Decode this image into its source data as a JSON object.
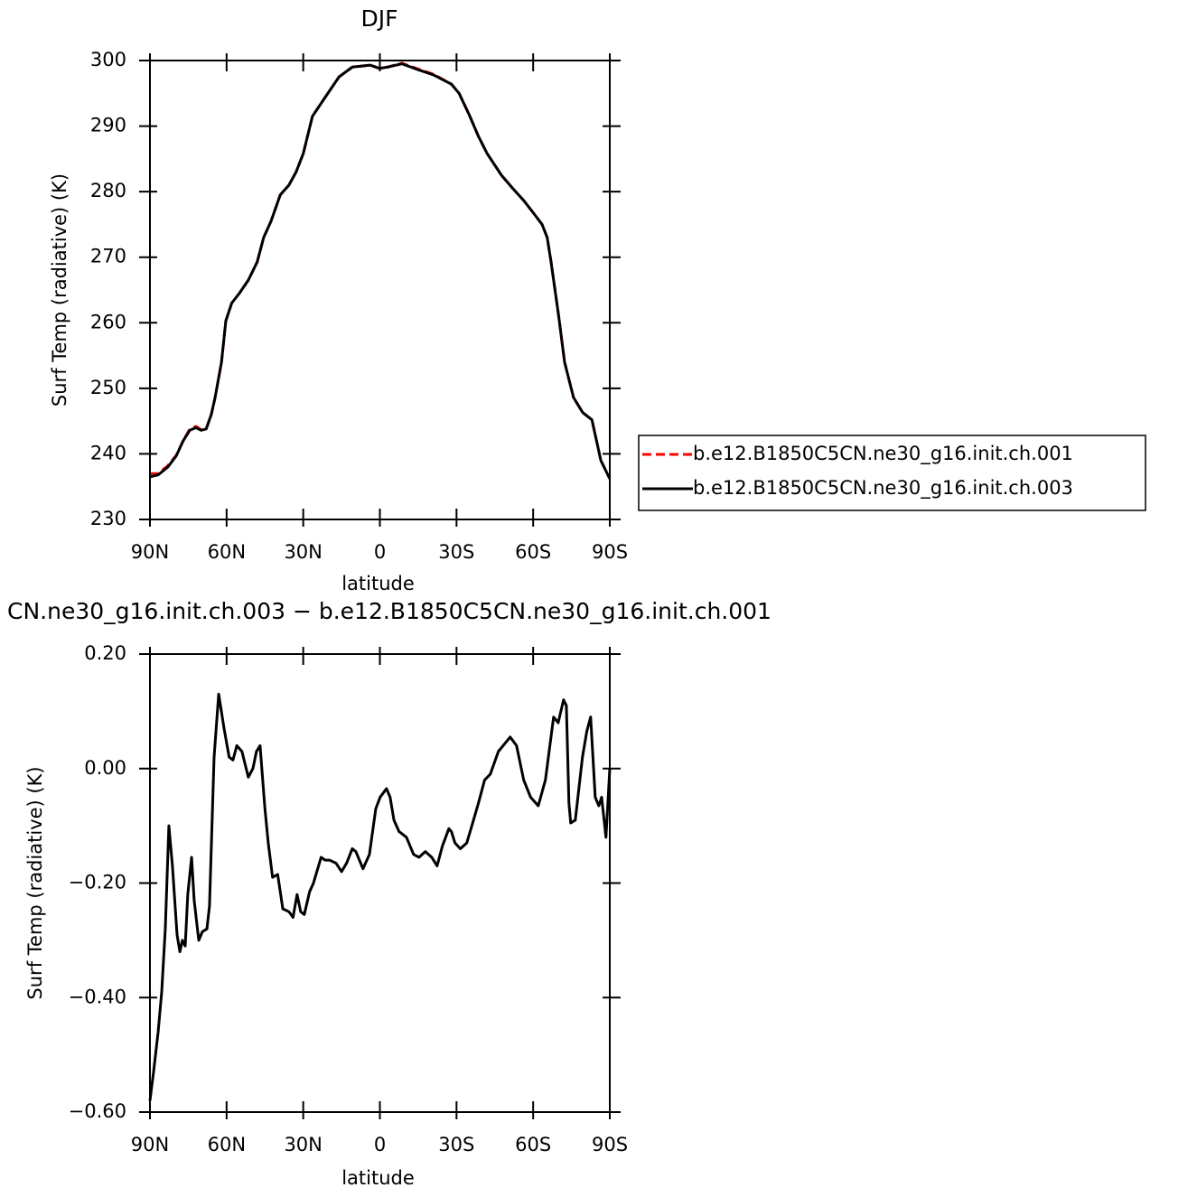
{
  "chart_data": [
    {
      "type": "line",
      "title": "DJF",
      "xlabel": "latitude",
      "ylabel": "Surf Temp (radiative) (K)",
      "x": [
        90,
        86.8,
        83,
        79.7,
        77,
        74.4,
        72,
        70,
        68,
        66,
        64.5,
        62,
        60.3,
        58,
        55,
        51.5,
        48,
        45.5,
        42.6,
        39,
        35.6,
        32.8,
        30,
        26.4,
        21.4,
        16,
        10.8,
        3.8,
        0.2,
        -3,
        -8.6,
        -15,
        -21,
        -28,
        -31,
        -35,
        -38.5,
        -42,
        -47.6,
        -52,
        -56.4,
        -60,
        -63.5,
        -65.5,
        -67,
        -70,
        -72.3,
        -75.8,
        -79.4,
        -83,
        -86.5,
        -90
      ],
      "series": [
        {
          "name": "b.e12.B1850C5CN.ne30_g16.init.ch.001",
          "color": "#ff0000",
          "linestyle": "dashed",
          "values": [
            237,
            237,
            238.2,
            239.8,
            242,
            243.8,
            244.2,
            243.7,
            243.8,
            246,
            248.6,
            254,
            260.3,
            263,
            264.5,
            266.5,
            269.3,
            273,
            275.5,
            279.5,
            281,
            283,
            285.8,
            291.5,
            294.4,
            297.5,
            299,
            299.3,
            298.8,
            299,
            299.6,
            298.7,
            297.9,
            296.4,
            295,
            291.7,
            288.5,
            285.8,
            282.5,
            280.5,
            278.6,
            276.8,
            275,
            273,
            269.3,
            261,
            254,
            248.6,
            246.3,
            245.2,
            239,
            236.2
          ]
        },
        {
          "name": "b.e12.B1850C5CN.ne30_g16.init.ch.003",
          "color": "#000000",
          "linestyle": "solid",
          "values": [
            236.5,
            236.8,
            238,
            239.7,
            242,
            243.6,
            244,
            243.6,
            243.8,
            246,
            248.6,
            254,
            260.3,
            263,
            264.5,
            266.5,
            269.3,
            273,
            275.5,
            279.5,
            281,
            283,
            285.8,
            291.5,
            294.4,
            297.5,
            299,
            299.3,
            298.8,
            299,
            299.5,
            298.6,
            297.8,
            296.4,
            295,
            291.7,
            288.5,
            285.8,
            282.5,
            280.5,
            278.6,
            276.8,
            275,
            273,
            269.3,
            261,
            254,
            248.6,
            246.3,
            245.2,
            239,
            236.2
          ]
        }
      ],
      "xlim": [
        90,
        -90
      ],
      "ylim": [
        230,
        300
      ],
      "xticks": [
        {
          "value": 90,
          "label": "90N"
        },
        {
          "value": 60,
          "label": "60N"
        },
        {
          "value": 30,
          "label": "30N"
        },
        0,
        {
          "value": -30,
          "label": "30S"
        },
        {
          "value": -60,
          "label": "60S"
        },
        {
          "value": -90,
          "label": "90S"
        }
      ],
      "yticks": [
        230,
        240,
        250,
        260,
        270,
        280,
        290,
        300
      ],
      "legend": "right"
    },
    {
      "type": "line",
      "title": "CN.ne30_g16.init.ch.003 − b.e12.B1850C5CN.ne30_g16.init.ch.001",
      "xlabel": "latitude",
      "ylabel": "Surf Temp (radiative) (K)",
      "x": [
        90,
        88.6,
        86.8,
        85.4,
        84,
        82.6,
        81.2,
        79.4,
        78.3,
        77.3,
        76.2,
        75.2,
        73.7,
        72.7,
        70.9,
        69.5,
        67.7,
        66.7,
        64.9,
        63.1,
        61,
        59,
        57.5,
        56,
        54,
        51.5,
        49.7,
        48.3,
        46.9,
        45,
        43.7,
        42,
        40,
        38,
        35.6,
        34,
        32.4,
        31,
        29.6,
        27.5,
        26,
        23,
        21.4,
        19.7,
        17.2,
        15,
        13,
        10.8,
        9.4,
        6.6,
        4.1,
        1.6,
        -0.1,
        -2.6,
        -4,
        -5.5,
        -7.5,
        -10.4,
        -13.2,
        -15.3,
        -17.8,
        -20.3,
        -22.4,
        -24.5,
        -27,
        -28,
        -29.4,
        -31.5,
        -34,
        -36,
        -38.6,
        -41,
        -43.2,
        -46.4,
        -51,
        -53.5,
        -56.3,
        -59,
        -62,
        -64.8,
        -68,
        -69.8,
        -71.9,
        -73,
        -74,
        -74.7,
        -76.5,
        -79.3,
        -81,
        -82.5,
        -84.3,
        -85.7,
        -86.8,
        -88.5,
        -90
      ],
      "series": [
        {
          "color": "#000000",
          "linestyle": "solid",
          "values": [
            -0.58,
            -0.53,
            -0.46,
            -0.39,
            -0.28,
            -0.1,
            -0.17,
            -0.29,
            -0.32,
            -0.3,
            -0.31,
            -0.22,
            -0.155,
            -0.23,
            -0.3,
            -0.285,
            -0.28,
            -0.24,
            0.02,
            0.13,
            0.07,
            0.02,
            0.015,
            0.04,
            0.03,
            -0.015,
            0,
            0.03,
            0.04,
            -0.07,
            -0.13,
            -0.19,
            -0.185,
            -0.245,
            -0.25,
            -0.26,
            -0.22,
            -0.25,
            -0.255,
            -0.215,
            -0.2,
            -0.155,
            -0.16,
            -0.16,
            -0.165,
            -0.18,
            -0.165,
            -0.14,
            -0.145,
            -0.175,
            -0.15,
            -0.07,
            -0.05,
            -0.035,
            -0.05,
            -0.09,
            -0.11,
            -0.12,
            -0.15,
            -0.155,
            -0.145,
            -0.155,
            -0.17,
            -0.135,
            -0.105,
            -0.11,
            -0.13,
            -0.14,
            -0.13,
            -0.1,
            -0.06,
            -0.02,
            -0.01,
            0.03,
            0.055,
            0.04,
            -0.02,
            -0.05,
            -0.065,
            -0.02,
            0.09,
            0.08,
            0.12,
            0.11,
            -0.06,
            -0.095,
            -0.09,
            0.02,
            0.065,
            0.09,
            -0.05,
            -0.065,
            -0.05,
            -0.12,
            0
          ]
        }
      ],
      "xlim": [
        90,
        -90
      ],
      "ylim": [
        -0.6,
        0.2
      ],
      "xticks": [
        {
          "value": 90,
          "label": "90N"
        },
        {
          "value": 60,
          "label": "60N"
        },
        {
          "value": 30,
          "label": "30N"
        },
        0,
        {
          "value": -30,
          "label": "30S"
        },
        {
          "value": -60,
          "label": "60S"
        },
        {
          "value": -90,
          "label": "90S"
        }
      ],
      "yticks": [
        {
          "value": -0.6,
          "label": "−0.60"
        },
        {
          "value": -0.4,
          "label": "−0.40"
        },
        {
          "value": -0.2,
          "label": "−0.20"
        },
        {
          "value": 0,
          "label": "0.00"
        },
        {
          "value": 0.2,
          "label": "0.20"
        }
      ]
    }
  ]
}
